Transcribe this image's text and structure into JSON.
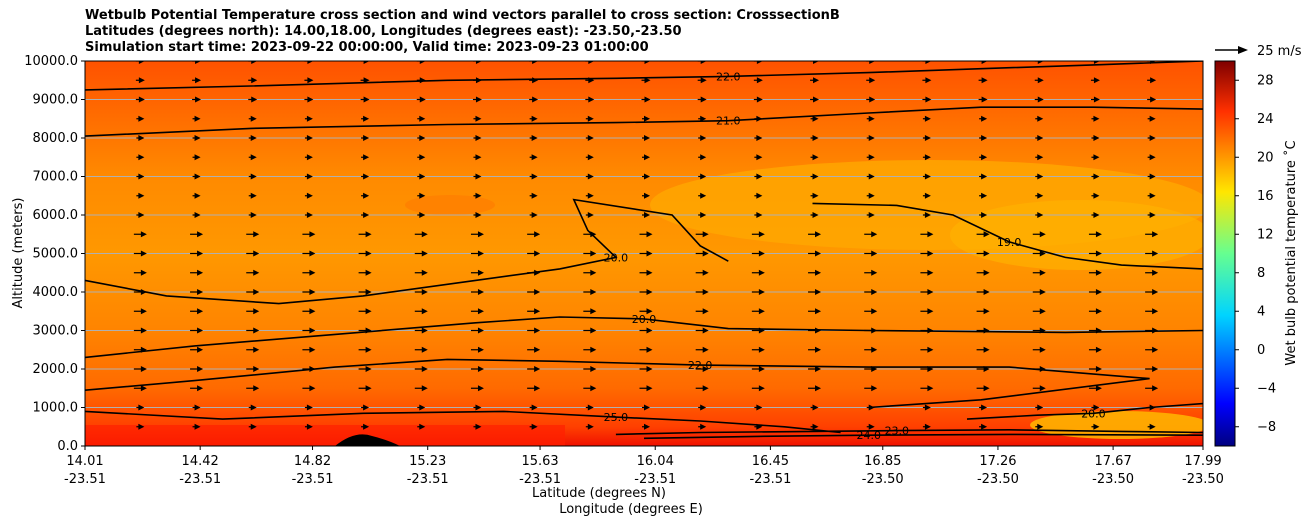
{
  "chart_data": {
    "type": "heatmap",
    "title_lines": [
      "Wetbulb Potential Temperature cross section and wind vectors parallel to cross section: CrosssectionB",
      "Latitudes (degrees north): 14.00,18.00, Longitudes (degrees east): -23.50,-23.50",
      "Simulation start time: 2023-09-22 00:00:00, Valid time: 2023-09-23 01:00:00"
    ],
    "xlabel_lat": "Latitude (degrees N)",
    "xlabel_lon": "Longitude (degrees E)",
    "ylabel": "Altitude (meters)",
    "x_ticks": [
      {
        "lat": "14.01",
        "lon": "-23.51"
      },
      {
        "lat": "14.42",
        "lon": "-23.51"
      },
      {
        "lat": "14.82",
        "lon": "-23.51"
      },
      {
        "lat": "15.23",
        "lon": "-23.51"
      },
      {
        "lat": "15.63",
        "lon": "-23.51"
      },
      {
        "lat": "16.04",
        "lon": "-23.51"
      },
      {
        "lat": "16.45",
        "lon": "-23.51"
      },
      {
        "lat": "16.85",
        "lon": "-23.50"
      },
      {
        "lat": "17.26",
        "lon": "-23.50"
      },
      {
        "lat": "17.67",
        "lon": "-23.50"
      },
      {
        "lat": "17.99",
        "lon": "-23.50"
      }
    ],
    "y_ticks": [
      "0.0",
      "1000.0",
      "2000.0",
      "3000.0",
      "4000.0",
      "5000.0",
      "6000.0",
      "7000.0",
      "8000.0",
      "9000.0",
      "10000.0"
    ],
    "ylim": [
      0,
      10000
    ],
    "xlim": [
      14.01,
      17.99
    ],
    "grid": "horizontal",
    "colorbar": {
      "label": "Wet bulb potential temperature ˚C",
      "ticks": [
        "−8",
        "−4",
        "0",
        "4",
        "8",
        "12",
        "16",
        "20",
        "24",
        "28"
      ],
      "range": [
        -10,
        30
      ],
      "colormap": "jet"
    },
    "wind_key": {
      "label": "25 m/s",
      "value": 25
    },
    "contours": [
      {
        "level": 22,
        "label": "22.0",
        "alt": [
          9250,
          9350,
          9500,
          9550,
          9600,
          9700,
          9800,
          9900,
          10000
        ],
        "lat": [
          14.01,
          14.6,
          15.3,
          15.9,
          16.3,
          16.8,
          17.2,
          17.6,
          17.99
        ]
      },
      {
        "level": 21,
        "label": "21.0",
        "alt": [
          8050,
          8250,
          8350,
          8400,
          8450,
          8650,
          8800,
          8800,
          8750
        ],
        "lat": [
          14.01,
          14.6,
          15.3,
          15.9,
          16.3,
          16.8,
          17.2,
          17.6,
          17.99
        ]
      },
      {
        "level": 19,
        "label": "19.0",
        "alt": [
          6300,
          6250,
          6000,
          5300,
          4900,
          4700,
          4600
        ],
        "lat": [
          16.6,
          16.9,
          17.1,
          17.3,
          17.5,
          17.7,
          17.99
        ]
      },
      {
        "level": 20,
        "label": "20.0",
        "alt": [
          4300,
          3900,
          3700,
          3900,
          4300,
          4600,
          4900,
          5600,
          6400,
          6000,
          5200,
          4800
        ],
        "lat": [
          14.01,
          14.3,
          14.7,
          15.0,
          15.4,
          15.7,
          15.9,
          15.8,
          15.75,
          16.1,
          16.2,
          16.3
        ]
      },
      {
        "level": 20,
        "label": "20.0",
        "alt": [
          2300,
          2600,
          2900,
          3200,
          3350,
          3300,
          3050,
          3000,
          2950,
          3000
        ],
        "lat": [
          14.01,
          14.4,
          14.9,
          15.4,
          15.7,
          16.0,
          16.3,
          16.8,
          17.5,
          17.99
        ]
      },
      {
        "level": 22,
        "label": "22.0",
        "alt": [
          1450,
          1700,
          2050,
          2250,
          2200,
          2100,
          2050,
          2050,
          1750,
          1200,
          1000
        ],
        "lat": [
          14.01,
          14.4,
          14.9,
          15.3,
          15.7,
          16.2,
          16.8,
          17.3,
          17.8,
          17.2,
          16.8
        ]
      },
      {
        "level": 25,
        "label": "25.0",
        "alt": [
          900,
          700,
          850,
          900,
          750,
          650,
          500,
          350
        ],
        "lat": [
          14.01,
          14.5,
          15.0,
          15.5,
          15.9,
          16.2,
          16.5,
          16.7
        ]
      },
      {
        "level": 23,
        "label": "23.0",
        "alt": [
          300,
          350,
          380,
          400,
          420,
          380,
          350
        ],
        "lat": [
          15.9,
          16.2,
          16.6,
          16.9,
          17.3,
          17.7,
          17.99
        ]
      },
      {
        "level": 24,
        "label": "24.0",
        "alt": [
          200,
          250,
          280,
          300,
          280
        ],
        "lat": [
          16.0,
          16.4,
          16.8,
          17.3,
          17.99
        ]
      },
      {
        "level": 20,
        "label": "20.0",
        "alt": [
          700,
          800,
          850,
          1000,
          1100
        ],
        "lat": [
          17.15,
          17.4,
          17.6,
          17.8,
          17.99
        ]
      }
    ],
    "wind_rows_alt": [
      500,
      1000,
      1500,
      2000,
      2500,
      3000,
      3500,
      4000,
      4500,
      5000,
      5500,
      6000,
      6500,
      7000,
      7500,
      8000,
      8500,
      9000,
      9500,
      10000
    ],
    "wind_cols_lat": [
      14.2,
      14.4,
      14.6,
      14.8,
      15.0,
      15.2,
      15.4,
      15.6,
      15.8,
      16.0,
      16.2,
      16.4,
      16.6,
      16.8,
      17.0,
      17.2,
      17.4,
      17.6,
      17.8
    ]
  }
}
